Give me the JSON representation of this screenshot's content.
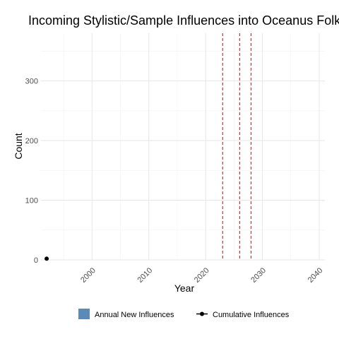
{
  "chart_data": {
    "type": "bar",
    "title": "Incoming Stylistic/Sample Influences into Oceanus Folk",
    "xlabel": "Year",
    "ylabel": "Count",
    "xlim": [
      1991,
      2041
    ],
    "ylim": [
      0,
      380
    ],
    "x_ticks": [
      2000,
      2010,
      2020,
      2030,
      2040
    ],
    "y_ticks": [
      0,
      100,
      200,
      300
    ],
    "grid": true,
    "series": [
      {
        "name": "Annual New Influences",
        "kind": "bar",
        "color": "#5b89b8",
        "points": []
      },
      {
        "name": "Cumulative Influences",
        "kind": "line",
        "color": "#000000",
        "points": [
          {
            "x": 1992,
            "y": 2
          }
        ]
      }
    ],
    "reference_lines": {
      "orientation": "vertical",
      "style": "dashed",
      "color": "#c0392b",
      "x": [
        2023,
        2026,
        2028
      ]
    },
    "legend": {
      "position": "bottom"
    }
  }
}
